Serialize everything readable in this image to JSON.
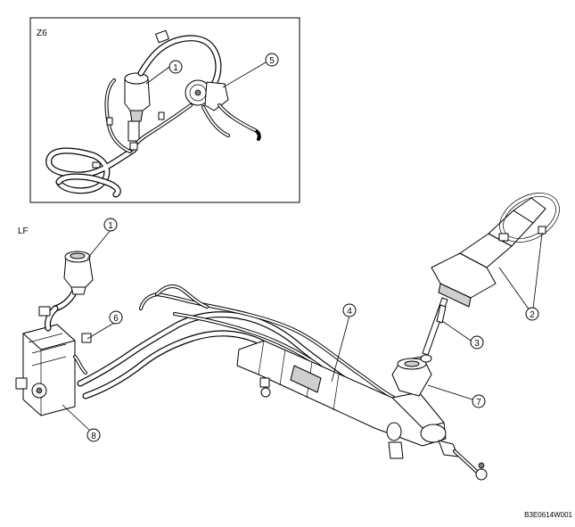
{
  "inset": {
    "label": "Z6"
  },
  "main": {
    "label": "LF"
  },
  "callouts": {
    "c1_inset": "1",
    "c5_inset": "5",
    "c1": "1",
    "c2": "2",
    "c3": "3",
    "c4": "4",
    "c6": "6",
    "c7": "7",
    "c8": "8"
  },
  "figure_code": "B3E0614W001"
}
